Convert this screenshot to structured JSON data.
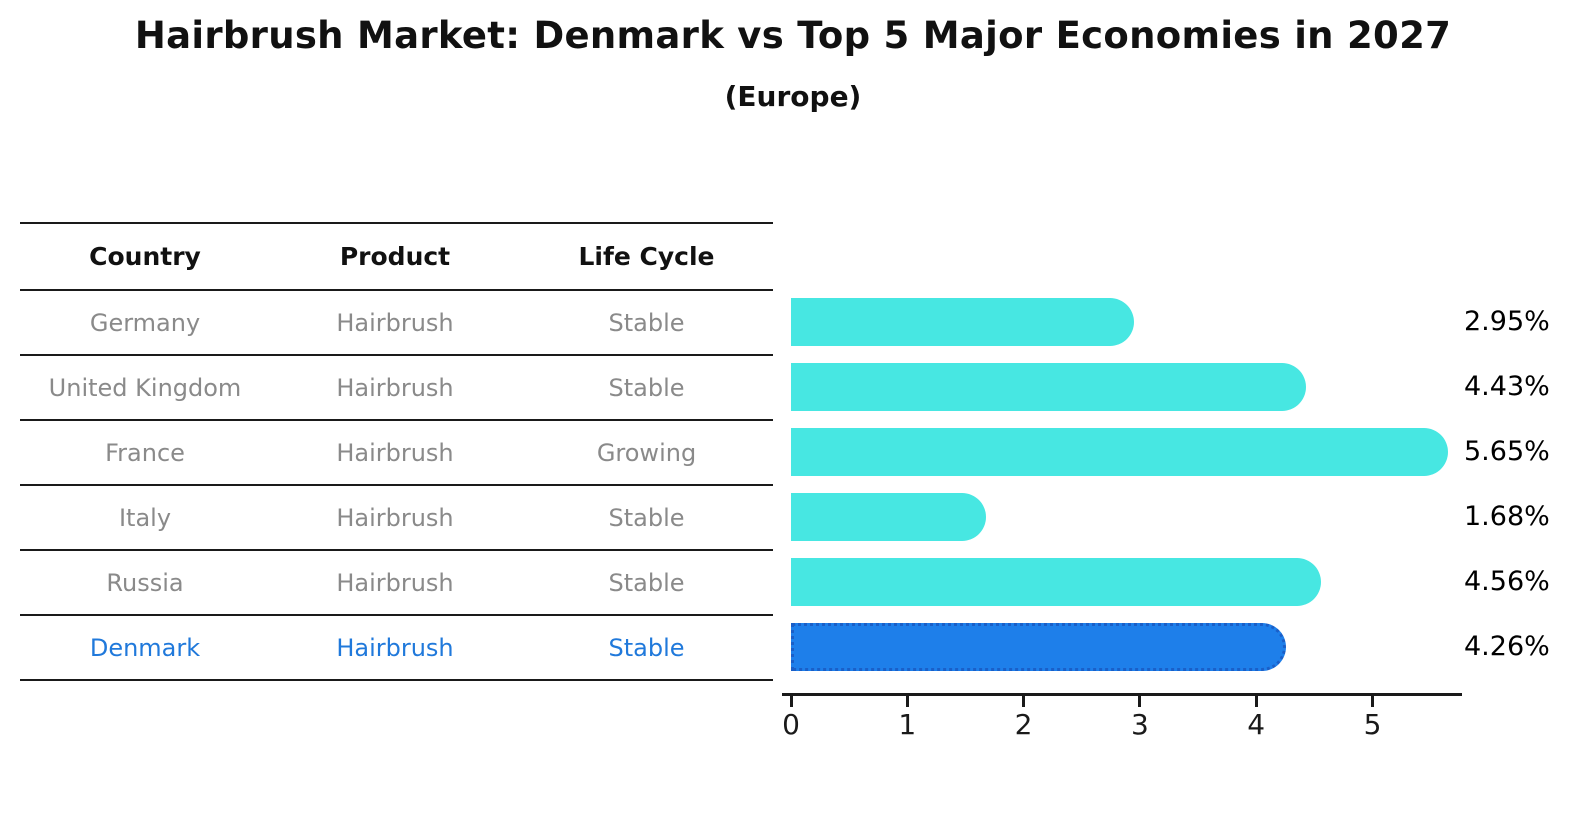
{
  "title": "Hairbrush Market: Denmark vs Top 5 Major Economies in 2027",
  "subtitle": "(Europe)",
  "table": {
    "headers": [
      "Country",
      "Product",
      "Life Cycle"
    ],
    "rows": [
      {
        "country": "Germany",
        "product": "Hairbrush",
        "life_cycle": "Stable"
      },
      {
        "country": "United Kingdom",
        "product": "Hairbrush",
        "life_cycle": "Stable"
      },
      {
        "country": "France",
        "product": "Hairbrush",
        "life_cycle": "Growing"
      },
      {
        "country": "Italy",
        "product": "Hairbrush",
        "life_cycle": "Stable"
      },
      {
        "country": "Russia",
        "product": "Hairbrush",
        "life_cycle": "Stable"
      },
      {
        "country": "Denmark",
        "product": "Hairbrush",
        "life_cycle": "Stable"
      }
    ],
    "highlighted_row": "Denmark"
  },
  "chart_data": {
    "type": "bar",
    "orientation": "horizontal",
    "title": "Hairbrush Market: Denmark vs Top 5 Major Economies in 2027",
    "subtitle": "(Europe)",
    "categories": [
      "Germany",
      "United Kingdom",
      "France",
      "Italy",
      "Russia",
      "Denmark"
    ],
    "values": [
      2.95,
      4.43,
      5.65,
      1.68,
      4.56,
      4.26
    ],
    "value_labels": [
      "2.95%",
      "4.43%",
      "5.65%",
      "1.68%",
      "4.56%",
      "4.26%"
    ],
    "unit": "%",
    "x_ticks": [
      "0",
      "1",
      "2",
      "3",
      "4",
      "5"
    ],
    "xlim": [
      0,
      5.75
    ],
    "grid": false,
    "legend": false,
    "highlight_index": 5,
    "colors": {
      "bar": "#47e7e2",
      "highlight_bar": "#1e7fea",
      "highlight_border": "#1a5fc8",
      "highlight_text": "#2079db",
      "axis": "#1a1a1a",
      "row_text": "#8a8a8a",
      "label_text": "#000000"
    }
  }
}
